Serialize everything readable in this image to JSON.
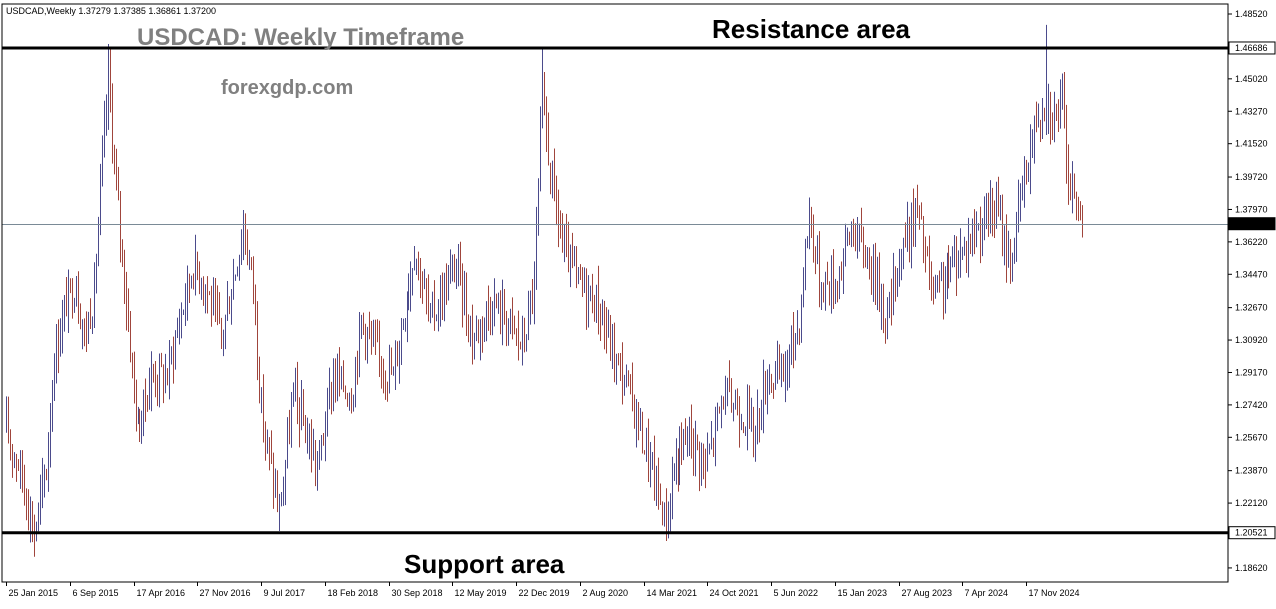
{
  "chart_data": {
    "type": "ohlc-bar",
    "symbol_line": "USDCAD,Weekly  1.37279 1.37385 1.36861 1.37200",
    "title": "USDCAD: Weekly Timeframe",
    "watermark": "forexgdp.com",
    "colors": {
      "up": "#4b4b8c",
      "down": "#a0453c",
      "level_line": "#000000",
      "current_line": "#7a8a96",
      "current_box": "#000000",
      "current_text": "#ffffff",
      "axis": "#000000",
      "background": "#ffffff"
    },
    "ylim": [
      1.1786,
      1.4906
    ],
    "y_ticks": [
      "1.48520",
      "1.46686",
      "1.45020",
      "1.43270",
      "1.41520",
      "1.39720",
      "1.37970",
      "1.37200",
      "1.36220",
      "1.34470",
      "1.32670",
      "1.30920",
      "1.29170",
      "1.27420",
      "1.25670",
      "1.23870",
      "1.22120",
      "1.20521",
      "1.18620"
    ],
    "x_ticks": [
      "25 Jan 2015",
      "6 Sep 2015",
      "17 Apr 2016",
      "27 Nov 2016",
      "9 Jul 2017",
      "18 Feb 2018",
      "30 Sep 2018",
      "12 May 2019",
      "22 Dec 2019",
      "2 Aug 2020",
      "14 Mar 2021",
      "24 Oct 2021",
      "5 Jun 2022",
      "15 Jan 2023",
      "27 Aug 2023",
      "7 Apr 2024",
      "17 Nov 2024"
    ],
    "x_range": [
      "2015-01-18",
      "2025-06-01"
    ],
    "levels": [
      {
        "name": "Resistance area",
        "value": 1.46686,
        "label": "1.46686"
      },
      {
        "name": "Support area",
        "value": 1.20521,
        "label": "1.20521"
      }
    ],
    "current_price": {
      "value": 1.372,
      "label": "1.37200"
    },
    "anchors": [
      [
        "2015-01-25",
        1.26
      ],
      [
        "2015-03-15",
        1.24
      ],
      [
        "2015-05-03",
        1.205
      ],
      [
        "2015-06-14",
        1.24
      ],
      [
        "2015-07-12",
        1.3
      ],
      [
        "2015-08-23",
        1.33
      ],
      [
        "2015-09-27",
        1.34
      ],
      [
        "2015-10-25",
        1.31
      ],
      [
        "2015-11-29",
        1.335
      ],
      [
        "2015-12-20",
        1.39
      ],
      [
        "2016-01-17",
        1.45
      ],
      [
        "2016-02-14",
        1.39
      ],
      [
        "2016-03-20",
        1.33
      ],
      [
        "2016-05-01",
        1.26
      ],
      [
        "2016-06-19",
        1.29
      ],
      [
        "2016-08-14",
        1.29
      ],
      [
        "2016-09-25",
        1.32
      ],
      [
        "2016-11-13",
        1.35
      ],
      [
        "2016-12-25",
        1.34
      ],
      [
        "2017-02-19",
        1.31
      ],
      [
        "2017-05-07",
        1.37
      ],
      [
        "2017-06-11",
        1.34
      ],
      [
        "2017-07-09",
        1.27
      ],
      [
        "2017-09-10",
        1.215
      ],
      [
        "2017-10-29",
        1.28
      ],
      [
        "2017-12-10",
        1.26
      ],
      [
        "2018-01-21",
        1.24
      ],
      [
        "2018-03-18",
        1.29
      ],
      [
        "2018-05-20",
        1.28
      ],
      [
        "2018-06-24",
        1.32
      ],
      [
        "2018-08-19",
        1.3
      ],
      [
        "2018-10-14",
        1.29
      ],
      [
        "2018-12-30",
        1.36
      ],
      [
        "2019-02-24",
        1.32
      ],
      [
        "2019-05-26",
        1.35
      ],
      [
        "2019-07-21",
        1.31
      ],
      [
        "2019-09-29",
        1.33
      ],
      [
        "2019-11-24",
        1.32
      ],
      [
        "2020-01-12",
        1.305
      ],
      [
        "2020-02-23",
        1.34
      ],
      [
        "2020-03-22",
        1.44
      ],
      [
        "2020-04-19",
        1.4
      ],
      [
        "2020-05-31",
        1.36
      ],
      [
        "2020-07-26",
        1.34
      ],
      [
        "2020-09-27",
        1.33
      ],
      [
        "2020-11-29",
        1.3
      ],
      [
        "2021-01-24",
        1.28
      ],
      [
        "2021-03-21",
        1.25
      ],
      [
        "2021-05-30",
        1.21
      ],
      [
        "2021-06-27",
        1.24
      ],
      [
        "2021-08-22",
        1.26
      ],
      [
        "2021-10-17",
        1.24
      ],
      [
        "2021-12-19",
        1.28
      ],
      [
        "2022-02-27",
        1.27
      ],
      [
        "2022-04-10",
        1.26
      ],
      [
        "2022-05-22",
        1.29
      ],
      [
        "2022-07-17",
        1.29
      ],
      [
        "2022-09-11",
        1.32
      ],
      [
        "2022-10-16",
        1.38
      ],
      [
        "2022-11-20",
        1.34
      ],
      [
        "2023-01-15",
        1.34
      ],
      [
        "2023-03-12",
        1.37
      ],
      [
        "2023-05-21",
        1.35
      ],
      [
        "2023-07-16",
        1.32
      ],
      [
        "2023-08-27",
        1.355
      ],
      [
        "2023-10-29",
        1.38
      ],
      [
        "2023-12-24",
        1.33
      ],
      [
        "2024-03-24",
        1.355
      ],
      [
        "2024-05-26",
        1.37
      ],
      [
        "2024-08-04",
        1.38
      ],
      [
        "2024-09-22",
        1.35
      ],
      [
        "2024-11-03",
        1.39
      ],
      [
        "2024-12-22",
        1.43
      ],
      [
        "2025-01-26",
        1.44
      ],
      [
        "2025-02-16",
        1.43
      ],
      [
        "2025-03-23",
        1.435
      ],
      [
        "2025-04-20",
        1.39
      ],
      [
        "2025-05-18",
        1.38
      ],
      [
        "2025-06-01",
        1.372
      ]
    ],
    "spikes": [
      [
        "2015-05-03",
        1.1922,
        "low"
      ],
      [
        "2016-01-17",
        1.469,
        "high"
      ],
      [
        "2017-09-10",
        1.2061,
        "low"
      ],
      [
        "2020-03-22",
        1.4668,
        "high"
      ],
      [
        "2021-05-30",
        1.2007,
        "low"
      ],
      [
        "2025-01-26",
        1.4793,
        "high"
      ]
    ]
  },
  "annotations": {
    "resistance_label": "Resistance area",
    "support_label": "Support area"
  }
}
